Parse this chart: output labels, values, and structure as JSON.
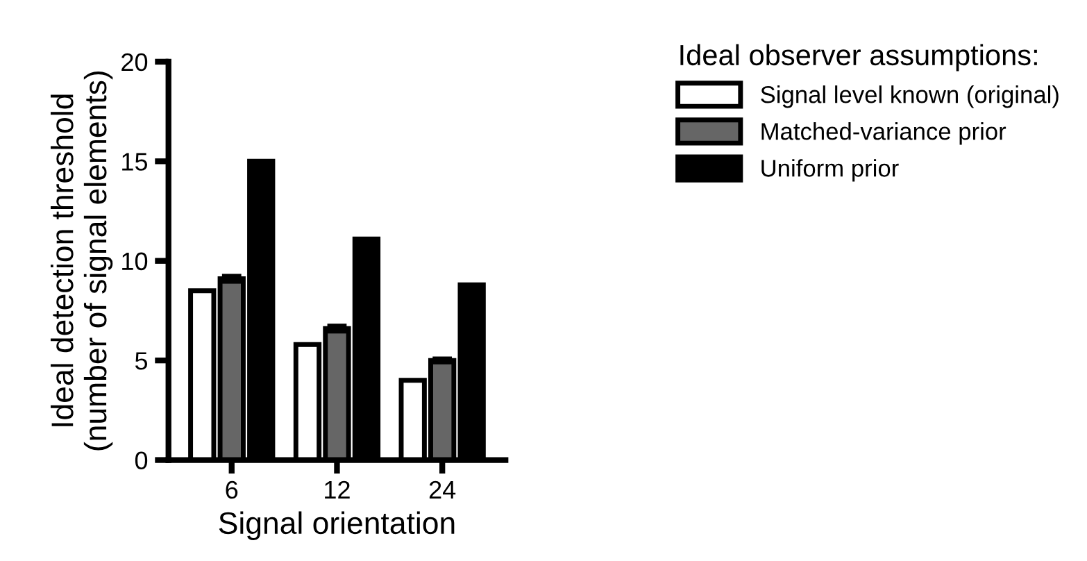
{
  "chart_data": {
    "type": "bar",
    "categories": [
      "6",
      "12",
      "24"
    ],
    "xlabel": "Signal orientation",
    "ylabel": "Ideal detection threshold\n(number of signal elements)",
    "legend_title": "Ideal observer assumptions:",
    "legend": "top right",
    "ylim": [
      0,
      20
    ],
    "yticks": [
      0,
      5,
      10,
      15,
      20
    ],
    "grid": false,
    "series": [
      {
        "name": "Signal level known (original)",
        "color": "#ffffff",
        "values": [
          8.5,
          5.8,
          4.0
        ]
      },
      {
        "name": "Matched-variance prior",
        "color": "#666666",
        "values": [
          9.1,
          6.6,
          5.0
        ],
        "errors": [
          0.15,
          0.15,
          0.1
        ]
      },
      {
        "name": "Uniform prior",
        "color": "#000000",
        "values": [
          15.0,
          11.1,
          8.8
        ]
      }
    ]
  }
}
